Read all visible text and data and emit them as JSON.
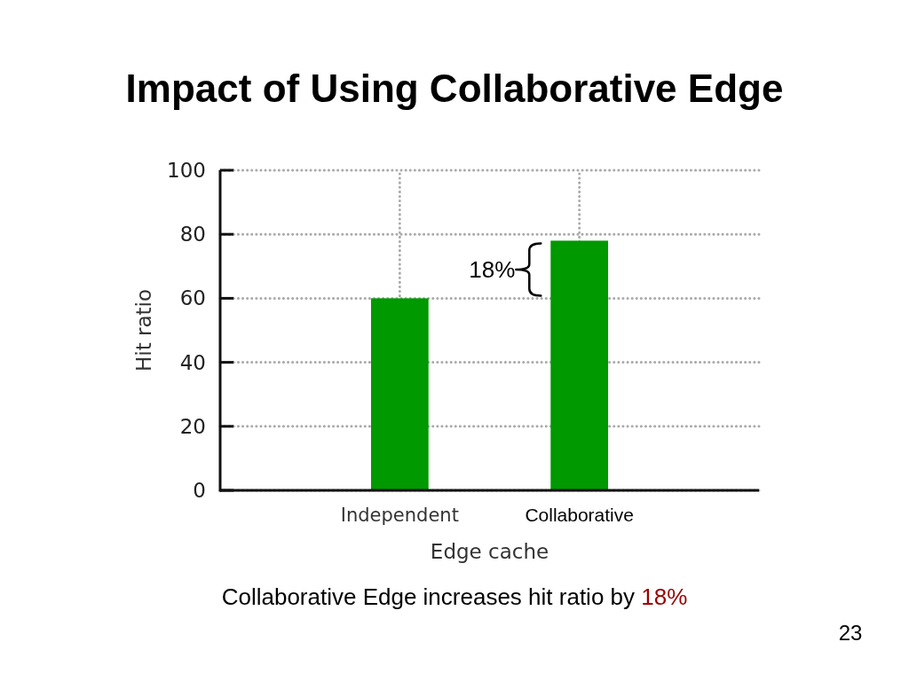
{
  "chart_data": {
    "type": "bar",
    "title": "Impact of Using Collaborative Edge",
    "categories": [
      "Independent",
      "Collaborative"
    ],
    "values": [
      60,
      78
    ],
    "color": "#009900",
    "ylim": [
      0,
      100
    ],
    "yticks": [
      0,
      20,
      40,
      60,
      80,
      100
    ],
    "grid": true,
    "xlabel": "Edge cache",
    "ylabel": "Hit ratio",
    "annotations": [
      "18%",
      "Collaborative Edge increases hit ratio by 18%",
      "23"
    ]
  }
}
